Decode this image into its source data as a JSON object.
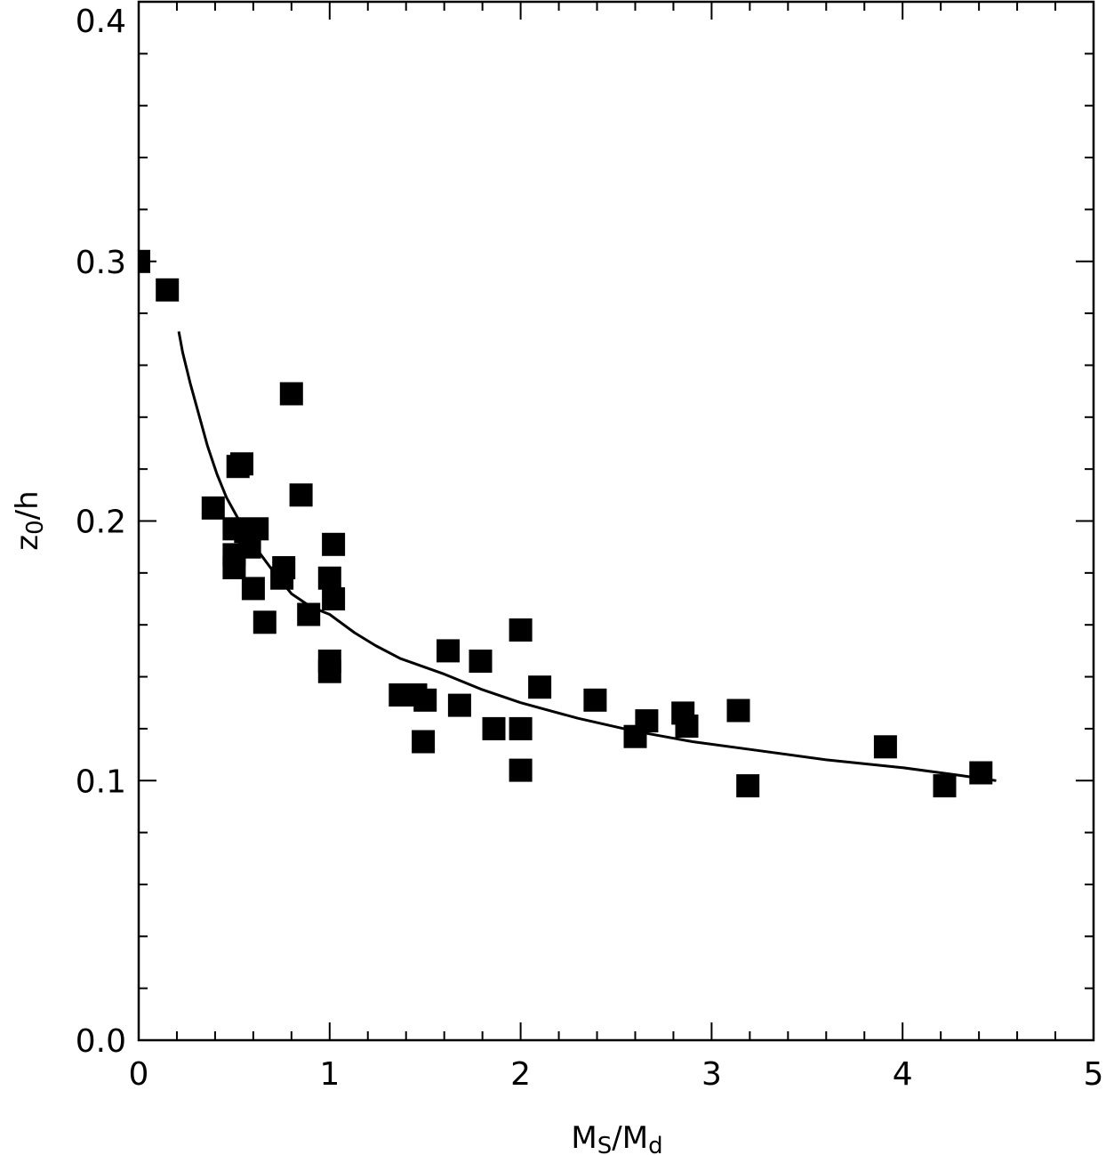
{
  "chart_data": {
    "type": "scatter",
    "xlabel": {
      "main": "M",
      "sub1": "S",
      "sep": "/M",
      "sub2": "d"
    },
    "ylabel": {
      "main": "z",
      "sub": "0",
      "rest": "/h"
    },
    "xlim": [
      0,
      5
    ],
    "ylim": [
      0,
      0.4
    ],
    "xticks": [
      0,
      1,
      2,
      3,
      4,
      5
    ],
    "xtick_labels": [
      "0",
      "1",
      "2",
      "3",
      "4",
      "5"
    ],
    "yticks": [
      0.0,
      0.1,
      0.2,
      0.3,
      0.4
    ],
    "ytick_labels": [
      "0.0",
      "0.1",
      "0.2",
      "0.3",
      "0.4"
    ],
    "x_minor_step": 0.2,
    "y_minor_step": 0.02,
    "grid": false,
    "legend": "none",
    "marker": "filled-square",
    "series": [
      {
        "type": "scatter",
        "points": [
          [
            0.0,
            0.3
          ],
          [
            0.15,
            0.289
          ],
          [
            0.8,
            0.249
          ],
          [
            0.52,
            0.221
          ],
          [
            0.54,
            0.222
          ],
          [
            0.39,
            0.205
          ],
          [
            0.85,
            0.21
          ],
          [
            0.5,
            0.197
          ],
          [
            0.56,
            0.196
          ],
          [
            0.62,
            0.197
          ],
          [
            0.5,
            0.187
          ],
          [
            0.58,
            0.19
          ],
          [
            0.5,
            0.182
          ],
          [
            0.76,
            0.182
          ],
          [
            0.75,
            0.178
          ],
          [
            0.6,
            0.174
          ],
          [
            1.02,
            0.191
          ],
          [
            1.0,
            0.178
          ],
          [
            1.02,
            0.17
          ],
          [
            0.66,
            0.161
          ],
          [
            0.89,
            0.164
          ],
          [
            1.0,
            0.146
          ],
          [
            1.0,
            0.142
          ],
          [
            1.62,
            0.15
          ],
          [
            1.79,
            0.146
          ],
          [
            2.0,
            0.158
          ],
          [
            2.1,
            0.136
          ],
          [
            1.37,
            0.133
          ],
          [
            1.45,
            0.133
          ],
          [
            1.5,
            0.131
          ],
          [
            1.68,
            0.129
          ],
          [
            1.49,
            0.115
          ],
          [
            1.86,
            0.12
          ],
          [
            2.0,
            0.12
          ],
          [
            2.0,
            0.104
          ],
          [
            2.39,
            0.131
          ],
          [
            2.6,
            0.117
          ],
          [
            2.66,
            0.123
          ],
          [
            2.85,
            0.126
          ],
          [
            2.87,
            0.121
          ],
          [
            3.14,
            0.127
          ],
          [
            3.19,
            0.098
          ],
          [
            3.91,
            0.113
          ],
          [
            4.22,
            0.098
          ],
          [
            4.41,
            0.103
          ]
        ]
      },
      {
        "type": "line",
        "points": [
          [
            0.21,
            0.273
          ],
          [
            0.23,
            0.265
          ],
          [
            0.27,
            0.253
          ],
          [
            0.33,
            0.237
          ],
          [
            0.36,
            0.229
          ],
          [
            0.41,
            0.218
          ],
          [
            0.46,
            0.209
          ],
          [
            0.52,
            0.201
          ],
          [
            0.6,
            0.191
          ],
          [
            0.7,
            0.181
          ],
          [
            0.8,
            0.172
          ],
          [
            0.9,
            0.167
          ],
          [
            1.0,
            0.164
          ],
          [
            1.13,
            0.157
          ],
          [
            1.24,
            0.152
          ],
          [
            1.37,
            0.147
          ],
          [
            1.6,
            0.141
          ],
          [
            1.8,
            0.135
          ],
          [
            2.0,
            0.13
          ],
          [
            2.3,
            0.124
          ],
          [
            2.6,
            0.119
          ],
          [
            2.9,
            0.115
          ],
          [
            3.2,
            0.112
          ],
          [
            3.6,
            0.108
          ],
          [
            4.0,
            0.105
          ],
          [
            4.3,
            0.102
          ],
          [
            4.49,
            0.1
          ]
        ]
      }
    ]
  }
}
